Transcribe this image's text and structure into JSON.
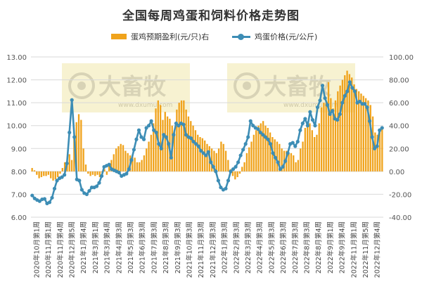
{
  "title": "全国每周鸡蛋和饲料价格走势图",
  "watermark": {
    "text": "大畜牧",
    "subtext": "www.dxumu.com"
  },
  "chart_data": {
    "type": "bar+line",
    "title": "全国每周鸡蛋和饲料价格走势图",
    "left_axis": {
      "ylim": [
        6.0,
        13.0
      ],
      "ticks": [
        "6.00",
        "7.00",
        "8.00",
        "9.00",
        "10.00",
        "11.00",
        "12.00",
        "13.00"
      ]
    },
    "right_axis": {
      "ylim": [
        -40,
        100
      ],
      "ticks": [
        "-40.00",
        "-20.00",
        "0.00",
        "20.00",
        "40.00",
        "60.00",
        "80.00",
        "100.00"
      ]
    },
    "x_tick_labels": [
      "2020年10月第1周",
      "2020年11月第1周",
      "2020年11月第4周",
      "2020年12月第5周",
      "2021年1月第4周",
      "2021年3月第1周",
      "2021年3月第4周",
      "2021年4月第3周",
      "2021年5月第3周",
      "2021年6月第3周",
      "2021年7月第3周",
      "2021年8月第3周",
      "2021年9月第3周",
      "2021年10月第3周",
      "2021年11月第3周",
      "2021年12月第3周",
      "2022年1月第3周",
      "2022年2月第3周",
      "2022年3月第3周",
      "2022年4月第3周",
      "2022年5月第3周",
      "2022年6月第3周",
      "2022年7月第3周",
      "2022年8月第3周",
      "2022年8月第4周",
      "2022年9月第1周",
      "2022年9月第4周",
      "2022年11月第1周",
      "2022年11月第5周",
      "2022年12月第4周"
    ],
    "grid": true,
    "legend_position": "top",
    "series": [
      {
        "name": "蛋鸡预期盈利(元/只)右",
        "kind": "bar",
        "axis": "right",
        "color": "#F0A31C",
        "values": [
          3,
          1,
          -3,
          -6,
          -5,
          -4,
          -4,
          -3,
          -6,
          -8,
          -7,
          -5,
          -2,
          3,
          8,
          9,
          15,
          10,
          30,
          43,
          50,
          45,
          20,
          6,
          -2,
          -4,
          -3,
          -4,
          -3,
          -5,
          -1,
          2,
          -3,
          5,
          10,
          15,
          20,
          22,
          24,
          23,
          18,
          16,
          14,
          14,
          12,
          8,
          8,
          10,
          14,
          20,
          26,
          32,
          42,
          55,
          62,
          58,
          45,
          52,
          48,
          46,
          40,
          36,
          54,
          60,
          62,
          62,
          54,
          48,
          44,
          40,
          36,
          32,
          30,
          29,
          27,
          24,
          22,
          20,
          18,
          16,
          20,
          26,
          24,
          18,
          10,
          2,
          -4,
          -7,
          -5,
          -2,
          4,
          8,
          16,
          21,
          26,
          32,
          36,
          40,
          42,
          44,
          40,
          38,
          34,
          30,
          28,
          26,
          24,
          20,
          18,
          18,
          16,
          16,
          14,
          8,
          10,
          20,
          26,
          38,
          40,
          42,
          36,
          30,
          32,
          42,
          56,
          60,
          60,
          78,
          64,
          55,
          62,
          70,
          75,
          80,
          84,
          88,
          85,
          82,
          76,
          72,
          70,
          68,
          66,
          64,
          62,
          58,
          48,
          34,
          32,
          35,
          38
        ]
      },
      {
        "name": "鸡蛋价格(元/公斤)",
        "kind": "line",
        "axis": "left",
        "color": "#3D8DB5",
        "values": [
          6.95,
          6.82,
          6.75,
          6.7,
          6.78,
          6.8,
          6.6,
          6.65,
          6.85,
          7.25,
          7.6,
          7.7,
          7.75,
          7.85,
          8.35,
          9.7,
          11.12,
          9.5,
          7.65,
          7.6,
          7.2,
          7.05,
          7.0,
          7.15,
          7.3,
          7.3,
          7.35,
          7.5,
          7.8,
          8.2,
          8.25,
          8.3,
          8.1,
          8.05,
          8.0,
          7.95,
          7.8,
          7.85,
          7.9,
          8.1,
          8.5,
          8.95,
          9.4,
          9.8,
          9.5,
          9.4,
          9.9,
          10.0,
          10.2,
          9.8,
          9.7,
          9.2,
          9.0,
          9.6,
          9.5,
          9.2,
          8.6,
          9.6,
          10.1,
          10.0,
          10.1,
          10.05,
          9.6,
          9.5,
          9.45,
          9.3,
          9.2,
          9.1,
          8.9,
          8.8,
          8.7,
          8.85,
          8.4,
          8.2,
          8.0,
          7.6,
          7.3,
          7.2,
          7.25,
          7.6,
          8.0,
          8.1,
          8.2,
          8.4,
          8.7,
          8.95,
          9.2,
          9.5,
          10.2,
          10.0,
          9.9,
          9.85,
          9.7,
          9.6,
          9.5,
          9.4,
          9.2,
          8.8,
          8.6,
          8.4,
          8.1,
          8.2,
          8.45,
          8.8,
          9.2,
          9.25,
          9.1,
          9.3,
          9.8,
          10.1,
          10.3,
          10.0,
          10.6,
          10.25,
          10.0,
          10.8,
          11.1,
          11.75,
          11.2,
          10.9,
          10.5,
          10.65,
          10.3,
          10.25,
          10.5,
          11.0,
          11.3,
          11.5,
          11.9,
          11.65,
          11.5,
          11.0,
          11.05,
          10.95,
          10.95,
          10.8,
          10.2,
          9.5,
          9.0,
          9.1,
          9.8,
          9.9
        ]
      }
    ]
  }
}
